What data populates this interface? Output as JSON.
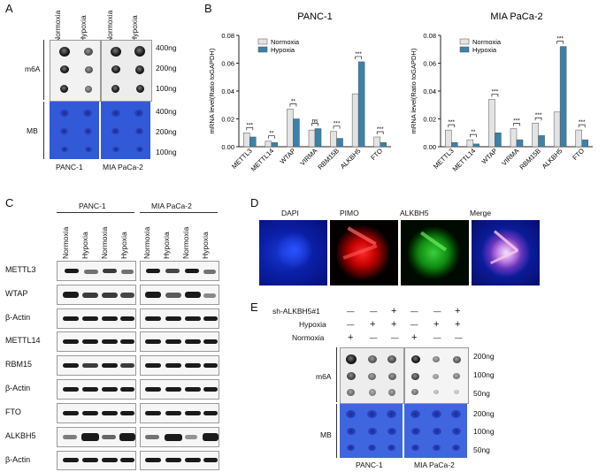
{
  "panels": {
    "A": "A",
    "B": "B",
    "C": "C",
    "D": "D",
    "E": "E"
  },
  "panelA": {
    "col_labels": [
      "Normoxia",
      "Hypoxia",
      "Normoxia",
      "Hypoxia"
    ],
    "row_m6a": "m6A",
    "row_mb": "MB",
    "amounts": [
      "400ng",
      "200ng",
      "100ng",
      "400ng",
      "200ng",
      "100ng"
    ],
    "cells": [
      "PANC-1",
      "MIA PaCa-2"
    ]
  },
  "panelC": {
    "cells": [
      "PANC-1",
      "MIA PaCa-2"
    ],
    "col_labels": [
      "Normoxia",
      "Hypoxia",
      "Normoxia",
      "Hypoxia",
      "Normoxia",
      "Hypoxia",
      "Normoxia",
      "Hypoxia"
    ],
    "rows": [
      "METTL3",
      "WTAP",
      "β-Actin",
      "METTL14",
      "RBM15",
      "β-Actin",
      "FTO",
      "ALKBH5",
      "β-Actin"
    ]
  },
  "panelD": {
    "labels": [
      "DAPI",
      "PIMO",
      "ALKBH5",
      "Merge"
    ]
  },
  "panelE": {
    "rows": [
      "sh-ALKBH5#1",
      "Hypoxia",
      "Normoxia"
    ],
    "signs": [
      [
        "—",
        "—",
        "+",
        "—",
        "—",
        "+"
      ],
      [
        "—",
        "+",
        "+",
        "—",
        "+",
        "+"
      ],
      [
        "+",
        "—",
        "—",
        "+",
        "—",
        "—"
      ]
    ],
    "row_m6a": "m6A",
    "row_mb": "MB",
    "amounts": [
      "200ng",
      "100ng",
      "50ng",
      "200ng",
      "100ng",
      "50ng"
    ],
    "cells": [
      "PANC-1",
      "MIA PaCa-2"
    ]
  },
  "chart_data": [
    {
      "type": "bar",
      "title": "PANC-1",
      "ylabel": "mRNA level(Ratio toGAPDH)",
      "ylim": [
        0,
        0.08
      ],
      "yticks": [
        "0.00",
        "0.02",
        "0.04",
        "0.06",
        "0.08"
      ],
      "categories": [
        "METTL3",
        "METTL14",
        "WTAP",
        "VIRMA",
        "RBM15B",
        "ALKBH5",
        "FTO"
      ],
      "series": [
        {
          "name": "Normoxia",
          "color": "#e3e3e3",
          "values": [
            0.01,
            0.004,
            0.027,
            0.012,
            0.011,
            0.038,
            0.007
          ]
        },
        {
          "name": "Hypoxia",
          "color": "#3b82a8",
          "values": [
            0.007,
            0.003,
            0.02,
            0.013,
            0.006,
            0.061,
            0.003
          ]
        }
      ],
      "significance": [
        "***",
        "**",
        "**",
        "ns",
        "***",
        "***",
        "***"
      ]
    },
    {
      "type": "bar",
      "title": "MIA PaCa-2",
      "ylabel": "mRNA level(Ratio toGAPDH)",
      "ylim": [
        0,
        0.08
      ],
      "yticks": [
        "0.00",
        "0.02",
        "0.04",
        "0.06",
        "0.08"
      ],
      "categories": [
        "METTL3",
        "METTL14",
        "WTAP",
        "VIRMA",
        "RBM15B",
        "ALKBH5",
        "FTO"
      ],
      "series": [
        {
          "name": "Normoxia",
          "color": "#e3e3e3",
          "values": [
            0.012,
            0.005,
            0.034,
            0.013,
            0.017,
            0.025,
            0.012
          ]
        },
        {
          "name": "Hypoxia",
          "color": "#3b82a8",
          "values": [
            0.003,
            0.002,
            0.01,
            0.005,
            0.008,
            0.072,
            0.005
          ]
        }
      ],
      "significance": [
        "***",
        "**",
        "***",
        "***",
        "***",
        "***",
        "***"
      ]
    }
  ]
}
